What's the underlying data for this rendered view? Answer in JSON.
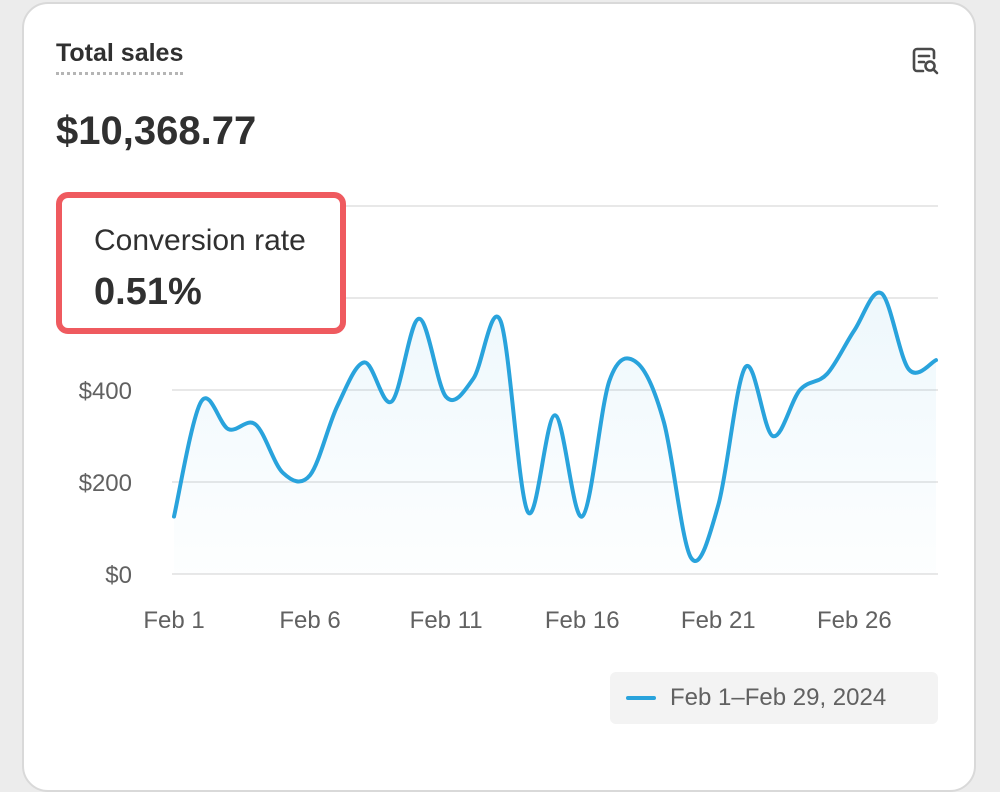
{
  "card": {
    "title": "Total sales",
    "total_value": "$10,368.77",
    "icon": "analytics-search-icon"
  },
  "highlight": {
    "label": "Conversion rate",
    "value": "0.51%",
    "border_color": "#ef5a5f"
  },
  "legend": {
    "label": "Feb 1–Feb 29, 2024",
    "color": "#29a3dc"
  },
  "chart_data": {
    "type": "line",
    "title": "",
    "xlabel": "",
    "ylabel": "",
    "grid": true,
    "legend_position": "bottom-right",
    "ylim": [
      0,
      800
    ],
    "yticks": [
      {
        "value": 0,
        "label": "$0"
      },
      {
        "value": 200,
        "label": "$200"
      },
      {
        "value": 400,
        "label": "$400"
      }
    ],
    "xticks": [
      {
        "day": 1,
        "label": "Feb 1"
      },
      {
        "day": 6,
        "label": "Feb 6"
      },
      {
        "day": 11,
        "label": "Feb 11"
      },
      {
        "day": 16,
        "label": "Feb 16"
      },
      {
        "day": 21,
        "label": "Feb 21"
      },
      {
        "day": 26,
        "label": "Feb 26"
      }
    ],
    "series": [
      {
        "name": "Feb 1–Feb 29, 2024",
        "color": "#29a3dc",
        "x": [
          1,
          2,
          3,
          4,
          5,
          6,
          7,
          8,
          9,
          10,
          11,
          12,
          13,
          14,
          15,
          16,
          17,
          18,
          19,
          20,
          21,
          22,
          23,
          24,
          25,
          26,
          27,
          28,
          29
        ],
        "values": [
          125,
          375,
          315,
          325,
          220,
          215,
          365,
          460,
          375,
          555,
          385,
          425,
          550,
          135,
          345,
          125,
          420,
          460,
          330,
          35,
          150,
          450,
          300,
          400,
          435,
          530,
          610,
          445,
          465
        ]
      }
    ]
  }
}
